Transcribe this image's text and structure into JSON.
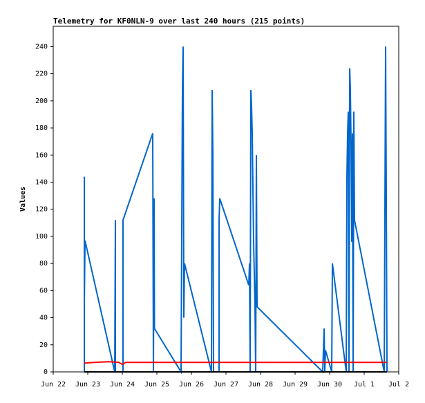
{
  "chart_data": {
    "type": "line",
    "title": "Telemetry for KF0NLN-9 over last 240 hours (215 points)",
    "ylabel": "Values",
    "xlim": [
      0,
      10
    ],
    "xticks": [
      {
        "value": 0,
        "label": "Jun 22"
      },
      {
        "value": 1,
        "label": "Jun 23"
      },
      {
        "value": 2,
        "label": "Jun 24"
      },
      {
        "value": 3,
        "label": "Jun 25"
      },
      {
        "value": 4,
        "label": "Jun 26"
      },
      {
        "value": 5,
        "label": "Jun 27"
      },
      {
        "value": 6,
        "label": "Jun 28"
      },
      {
        "value": 7,
        "label": "Jun 29"
      },
      {
        "value": 8,
        "label": "Jun 30"
      },
      {
        "value": 9,
        "label": "Jul 1"
      },
      {
        "value": 10,
        "label": "Jul 2"
      }
    ],
    "ylim": [
      0,
      255
    ],
    "yticks": [
      0,
      20,
      40,
      60,
      80,
      100,
      120,
      140,
      160,
      180,
      200,
      220,
      240
    ],
    "grid": false,
    "series": [
      {
        "color": "#0066cc",
        "x": [
          0.9,
          0.9,
          0.9,
          0.92,
          1.78,
          1.8,
          1.8,
          2.02,
          2.02,
          2.88,
          2.9,
          2.92,
          2.93,
          3.7,
          3.74,
          3.76,
          3.78,
          3.8,
          4.58,
          4.6,
          4.62,
          4.64,
          4.8,
          4.8,
          4.82,
          5.66,
          5.68,
          5.7,
          5.72,
          5.74,
          5.76,
          5.8,
          5.84,
          5.86,
          5.88,
          5.9,
          7.8,
          7.84,
          7.86,
          7.88,
          8.06,
          8.08,
          8.48,
          8.5,
          8.52,
          8.54,
          8.56,
          8.58,
          8.6,
          8.62,
          8.64,
          8.66,
          8.68,
          8.7,
          8.72,
          9.58,
          9.62,
          9.64,
          9.66
        ],
        "values": [
          0,
          144,
          48,
          97,
          0,
          112,
          0,
          0,
          112,
          176,
          0,
          128,
          32,
          0,
          208,
          240,
          40,
          80,
          0,
          208,
          160,
          0,
          0,
          112,
          128,
          64,
          80,
          0,
          208,
          196,
          176,
          96,
          48,
          0,
          160,
          48,
          0,
          32,
          0,
          16,
          0,
          80,
          0,
          144,
          176,
          192,
          0,
          224,
          208,
          168,
          96,
          176,
          0,
          192,
          112,
          0,
          240,
          128,
          0
        ]
      },
      {
        "color": "#ff0000",
        "x": [
          0.9,
          1.2,
          1.6,
          1.9,
          2.0,
          2.1,
          9.66
        ],
        "values": [
          6.5,
          7,
          7.5,
          7,
          5.5,
          7,
          7
        ]
      },
      {
        "color": "#000000",
        "x": [
          0.9,
          9.66
        ],
        "values": [
          0,
          0
        ]
      }
    ]
  }
}
